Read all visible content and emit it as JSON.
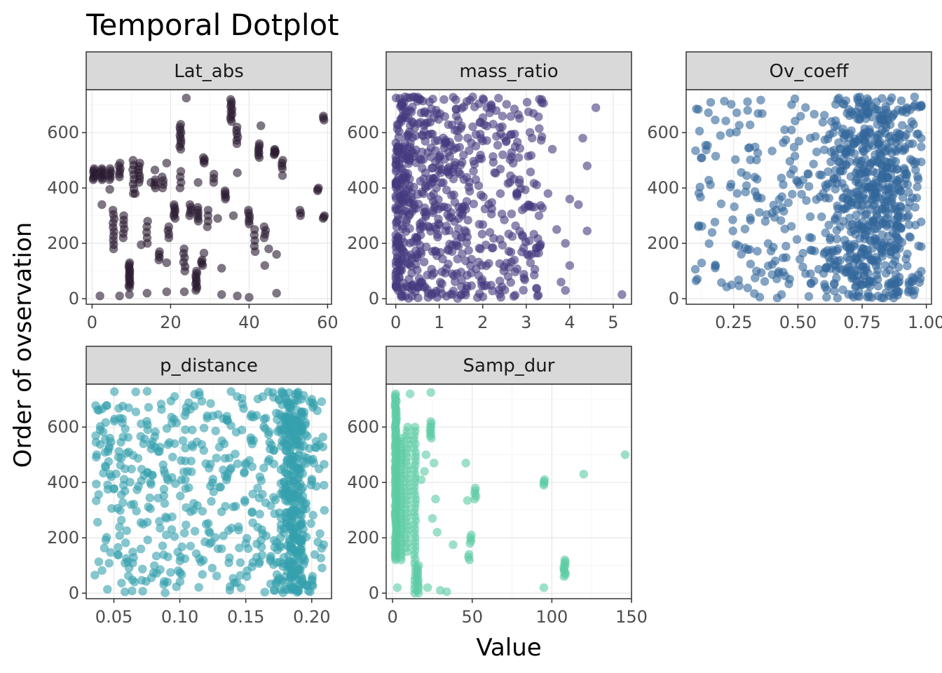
{
  "chart_data": {
    "type": "scatter",
    "title": "Temporal Dotplot",
    "xlabel": "Value",
    "ylabel": "Order of ovservation",
    "grid": true,
    "legend": "none",
    "point_alpha": 0.6,
    "panels": [
      {
        "name": "Lat_abs",
        "color": "#2a1a30",
        "xlim": [
          -1.5,
          61
        ],
        "xticks": [
          0,
          20,
          40,
          60
        ],
        "ylim": [
          -20,
          755
        ],
        "yticks": [
          0,
          200,
          400,
          600
        ],
        "clusters": [
          {
            "x": 0.5,
            "y": [
              430,
              470
            ],
            "n": 8
          },
          {
            "x": 2.5,
            "y": [
              430,
              470
            ],
            "n": 8
          },
          {
            "x": 4.5,
            "y": [
              430,
              470
            ],
            "n": 6
          },
          {
            "x": 5.5,
            "y": [
              180,
              320
            ],
            "n": 10
          },
          {
            "x": 7,
            "y": [
              440,
              490
            ],
            "n": 6
          },
          {
            "x": 8,
            "y": [
              220,
              300
            ],
            "n": 6
          },
          {
            "x": 9.5,
            "y": [
              40,
              130
            ],
            "n": 14
          },
          {
            "x": 10.5,
            "y": [
              380,
              500
            ],
            "n": 8
          },
          {
            "x": 12,
            "y": [
              420,
              490
            ],
            "n": 7
          },
          {
            "x": 14,
            "y": [
              200,
              280
            ],
            "n": 5
          },
          {
            "x": 16,
            "y": [
              400,
              430
            ],
            "n": 4
          },
          {
            "x": 17,
            "y": [
              140,
              170
            ],
            "n": 4
          },
          {
            "x": 18,
            "y": [
              400,
              440
            ],
            "n": 4
          },
          {
            "x": 19.5,
            "y": [
              220,
              260
            ],
            "n": 4
          },
          {
            "x": 21,
            "y": [
              290,
              340
            ],
            "n": 7
          },
          {
            "x": 22.5,
            "y": [
              400,
              460
            ],
            "n": 4
          },
          {
            "x": 22.5,
            "y": [
              540,
              630
            ],
            "n": 10
          },
          {
            "x": 23.5,
            "y": [
              100,
              180
            ],
            "n": 6
          },
          {
            "x": 25,
            "y": [
              300,
              340
            ],
            "n": 5
          },
          {
            "x": 26.5,
            "y": [
              30,
              100
            ],
            "n": 10
          },
          {
            "x": 27,
            "y": [
              280,
              330
            ],
            "n": 6
          },
          {
            "x": 28,
            "y": [
              120,
              140
            ],
            "n": 4
          },
          {
            "x": 28.5,
            "y": [
              490,
              510
            ],
            "n": 4
          },
          {
            "x": 29.5,
            "y": [
              260,
              320
            ],
            "n": 4
          },
          {
            "x": 31,
            "y": [
              420,
              450
            ],
            "n": 3
          },
          {
            "x": 34,
            "y": [
              360,
              390
            ],
            "n": 5
          },
          {
            "x": 35.5,
            "y": [
              640,
              720
            ],
            "n": 10
          },
          {
            "x": 37,
            "y": [
              560,
              620
            ],
            "n": 6
          },
          {
            "x": 40,
            "y": [
              270,
              320
            ],
            "n": 6
          },
          {
            "x": 41.5,
            "y": [
              170,
              250
            ],
            "n": 5
          },
          {
            "x": 42.5,
            "y": [
              510,
              560
            ],
            "n": 7
          },
          {
            "x": 44,
            "y": [
              220,
              260
            ],
            "n": 4
          },
          {
            "x": 46.5,
            "y": [
              520,
              540
            ],
            "n": 6
          },
          {
            "x": 48.5,
            "y": [
              470,
              500
            ],
            "n": 4
          },
          {
            "x": 53,
            "y": [
              300,
              320
            ],
            "n": 3
          },
          {
            "x": 57.5,
            "y": [
              390,
              400
            ],
            "n": 3
          },
          {
            "x": 59,
            "y": [
              290,
              300
            ],
            "n": 3
          },
          {
            "x": 59,
            "y": [
              645,
              660
            ],
            "n": 3
          }
        ],
        "points": [
          {
            "x": 2,
            "y": 10
          },
          {
            "x": 7,
            "y": 10
          },
          {
            "x": 9.5,
            "y": 15
          },
          {
            "x": 2.5,
            "y": 340
          },
          {
            "x": 4.5,
            "y": 395
          },
          {
            "x": 12.5,
            "y": 195
          },
          {
            "x": 19,
            "y": 130
          },
          {
            "x": 19,
            "y": 25
          },
          {
            "x": 23.5,
            "y": 25
          },
          {
            "x": 27,
            "y": 420
          },
          {
            "x": 24,
            "y": 725
          },
          {
            "x": 19,
            "y": 490
          },
          {
            "x": 15,
            "y": 420
          },
          {
            "x": 32,
            "y": 290
          },
          {
            "x": 33,
            "y": 110
          },
          {
            "x": 37,
            "y": 10
          },
          {
            "x": 40,
            "y": 5
          },
          {
            "x": 37,
            "y": 455
          },
          {
            "x": 43,
            "y": 625
          },
          {
            "x": 47,
            "y": 20
          },
          {
            "x": 48.5,
            "y": 445
          },
          {
            "x": 47,
            "y": 160
          },
          {
            "x": 45,
            "y": 180
          },
          {
            "x": 36,
            "y": 300
          },
          {
            "x": 11,
            "y": 380
          },
          {
            "x": 28.5,
            "y": 165
          },
          {
            "x": 16,
            "y": 465
          },
          {
            "x": 14,
            "y": 20
          },
          {
            "x": 33,
            "y": 15
          },
          {
            "x": 44,
            "y": 120
          }
        ]
      },
      {
        "name": "mass_ratio",
        "color": "#443a7e",
        "xlim": [
          -0.22,
          5.42
        ],
        "xticks": [
          0,
          1,
          2,
          3,
          4,
          5
        ],
        "ylim": [
          -20,
          755
        ],
        "yticks": [
          0,
          200,
          400,
          600
        ],
        "random": {
          "n": 700,
          "xmax": 3.4,
          "skew": 1.9
        },
        "points": [
          {
            "x": 3.5,
            "y": 380
          },
          {
            "x": 3.7,
            "y": 250
          },
          {
            "x": 3.9,
            "y": 200
          },
          {
            "x": 4.0,
            "y": 360
          },
          {
            "x": 4.2,
            "y": 340
          },
          {
            "x": 4.0,
            "y": 120
          },
          {
            "x": 4.4,
            "y": 245
          },
          {
            "x": 4.4,
            "y": 480
          },
          {
            "x": 4.3,
            "y": 580
          },
          {
            "x": 4.6,
            "y": 690
          },
          {
            "x": 5.2,
            "y": 15
          },
          {
            "x": 3.8,
            "y": 60
          },
          {
            "x": 3.6,
            "y": 540
          },
          {
            "x": 3.9,
            "y": 30
          }
        ]
      },
      {
        "name": "Ov_coeff",
        "color": "#34679b",
        "xlim": [
          0.065,
          1.02
        ],
        "xticks": [
          0.25,
          0.5,
          0.75,
          1.0
        ],
        "xtick_labels": [
          "0.25",
          "0.50",
          "0.75",
          "1.00"
        ],
        "ylim": [
          -20,
          755
        ],
        "yticks": [
          0,
          200,
          400,
          600
        ],
        "random": {
          "n": 850,
          "xmin": 0.1,
          "xmax": 0.98,
          "center": 0.79,
          "spread": 0.09,
          "frac_center": 0.6
        }
      },
      {
        "name": "p_distance",
        "color": "#35a0ad",
        "xlim": [
          0.029,
          0.215
        ],
        "xticks": [
          0.05,
          0.1,
          0.15,
          0.2
        ],
        "xtick_labels": [
          "0.05",
          "0.10",
          "0.15",
          "0.20"
        ],
        "ylim": [
          -20,
          755
        ],
        "yticks": [
          0,
          200,
          400,
          600
        ],
        "random": {
          "n": 800,
          "xmin": 0.035,
          "xmax": 0.21,
          "center": 0.185,
          "spread": 0.006,
          "frac_center": 0.35
        }
      },
      {
        "name": "Samp_dur",
        "color": "#5ccca4",
        "xlim": [
          -4,
          150
        ],
        "xticks": [
          0,
          50,
          100,
          150
        ],
        "ylim": [
          -20,
          755
        ],
        "yticks": [
          0,
          200,
          400,
          600
        ],
        "clusters": [
          {
            "x": 2,
            "y": [
              120,
              720
            ],
            "n": 90
          },
          {
            "x": 5,
            "y": [
              120,
              560
            ],
            "n": 40
          },
          {
            "x": 9,
            "y": [
              150,
              600
            ],
            "n": 30
          },
          {
            "x": 14,
            "y": [
              0,
              600
            ],
            "n": 40
          },
          {
            "x": 16,
            "y": [
              0,
              100
            ],
            "n": 12
          },
          {
            "x": 24,
            "y": [
              560,
              620
            ],
            "n": 8
          },
          {
            "x": 49,
            "y": [
              180,
              210
            ],
            "n": 4
          },
          {
            "x": 48,
            "y": [
              120,
              140
            ],
            "n": 3
          },
          {
            "x": 52,
            "y": [
              340,
              380
            ],
            "n": 5
          },
          {
            "x": 95,
            "y": [
              390,
              410
            ],
            "n": 4
          },
          {
            "x": 108,
            "y": [
              60,
              120
            ],
            "n": 10
          }
        ],
        "points": [
          {
            "x": 11,
            "y": 720
          },
          {
            "x": 24,
            "y": 725
          },
          {
            "x": 26,
            "y": 470
          },
          {
            "x": 27,
            "y": 340
          },
          {
            "x": 28,
            "y": 220
          },
          {
            "x": 30,
            "y": 10
          },
          {
            "x": 34,
            "y": 5
          },
          {
            "x": 38,
            "y": 175
          },
          {
            "x": 46,
            "y": 470
          },
          {
            "x": 47,
            "y": 335
          },
          {
            "x": 95,
            "y": 20
          },
          {
            "x": 120,
            "y": 430
          },
          {
            "x": 146,
            "y": 500
          },
          {
            "x": 21,
            "y": 500
          },
          {
            "x": 20,
            "y": 440
          },
          {
            "x": 18,
            "y": 410
          },
          {
            "x": 25,
            "y": 270
          },
          {
            "x": 22,
            "y": 20
          },
          {
            "x": 3,
            "y": 20
          }
        ]
      }
    ]
  }
}
